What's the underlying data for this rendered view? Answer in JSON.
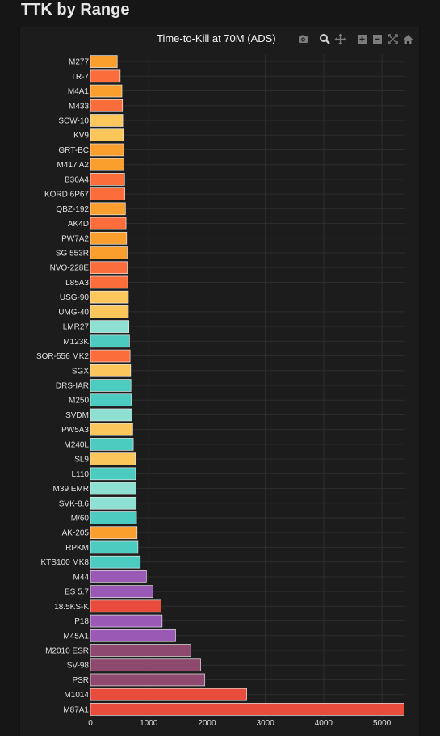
{
  "page": {
    "title": "TTK by Range"
  },
  "modebar": {
    "icons": [
      "camera-icon",
      "zoom-icon",
      "pan-icon",
      "zoom-in-icon",
      "zoom-out-icon",
      "autoscale-icon",
      "reset-axes-icon"
    ]
  },
  "chart_data": {
    "type": "bar",
    "orientation": "horizontal",
    "title": "Time-to-Kill at 70M (ADS)",
    "xlabel": "",
    "ylabel": "",
    "xlim": [
      0,
      5400
    ],
    "xticks": [
      0,
      1000,
      2000,
      3000,
      4000,
      5000
    ],
    "grid": true,
    "legend": "none",
    "categories": [
      "M277",
      "TR-7",
      "M4A1",
      "M433",
      "SCW-10",
      "KV9",
      "GRT-BC",
      "M417 A2",
      "B36A4",
      "KORD 6P67",
      "QBZ-192",
      "AK4D",
      "PW7A2",
      "SG 553R",
      "NVO-228E",
      "L85A3",
      "USG-90",
      "UMG-40",
      "LMR27",
      "M123K",
      "SOR-556 MK2",
      "SGX",
      "DRS-IAR",
      "M250",
      "SVDM",
      "PW5A3",
      "M240L",
      "SL9",
      "L110",
      "M39 EMR",
      "SVK-8.6",
      "M/60",
      "AK-205",
      "RPKM",
      "KTS100 MK8",
      "M44",
      "ES 5.7",
      "18.5KS-K",
      "P18",
      "M45A1",
      "M2010 ESR",
      "SV-98",
      "PSR",
      "M1014",
      "M87A1"
    ],
    "values": [
      460,
      510,
      540,
      550,
      555,
      565,
      570,
      575,
      585,
      590,
      600,
      610,
      620,
      630,
      630,
      640,
      650,
      650,
      660,
      670,
      680,
      690,
      695,
      705,
      710,
      725,
      735,
      770,
      775,
      780,
      785,
      790,
      800,
      815,
      855,
      960,
      1070,
      1210,
      1230,
      1460,
      1720,
      1890,
      1960,
      2680,
      5380
    ],
    "colors": [
      "#fa9f2e",
      "#fb6e3c",
      "#fa9f2e",
      "#fb6e3c",
      "#fcc75a",
      "#fcc75a",
      "#fa9f2e",
      "#fa9f2e",
      "#fb6e3c",
      "#fb6e3c",
      "#fa9f2e",
      "#fb6e3c",
      "#fa9f2e",
      "#fa9f2e",
      "#fb6e3c",
      "#fb6e3c",
      "#fcc75a",
      "#fcc75a",
      "#8ee0d2",
      "#4ccbc0",
      "#fb6e3c",
      "#fcc75a",
      "#4ccbc0",
      "#4ccbc0",
      "#8ee0d2",
      "#fcc75a",
      "#4ccbc0",
      "#fcc75a",
      "#4ccbc0",
      "#8ee0d2",
      "#8ee0d2",
      "#4ccbc0",
      "#fa9f2e",
      "#4ccbc0",
      "#4ccbc0",
      "#9b59b6",
      "#9b59b6",
      "#e74c3c",
      "#9b59b6",
      "#9b59b6",
      "#8e4a6e",
      "#8e4a6e",
      "#8e4a6e",
      "#e74c3c",
      "#e74c3c"
    ]
  }
}
